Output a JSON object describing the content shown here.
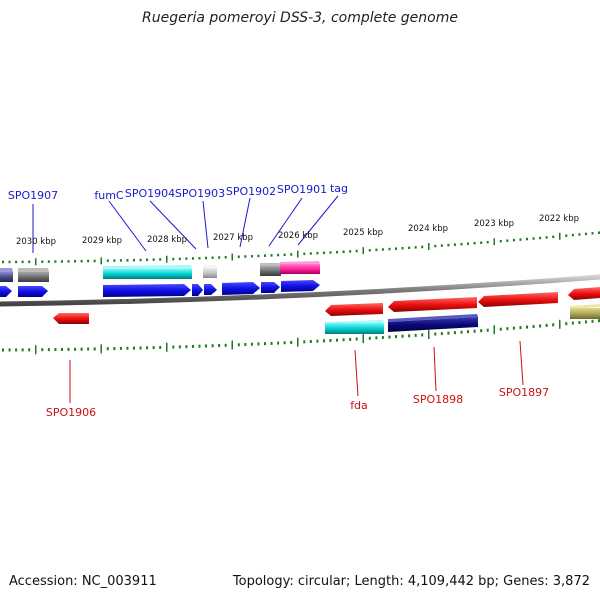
{
  "title": "Ruegeria pomeroyi DSS-3, complete genome",
  "footer": {
    "accession": "Accession: NC_003911",
    "summary": "Topology: circular; Length: 4,109,442 bp; Genes: 3,872"
  },
  "colors": {
    "forward_label": "#1a1acc",
    "reverse_label": "#cc1111",
    "tick": "#1f7a1f",
    "backbone": "#808080"
  },
  "scale": {
    "unit": "kbp",
    "ticks_upper": [
      "2030 kbp",
      "2029 kbp",
      "2028 kbp",
      "2027 kbp",
      "2026 kbp",
      "2025 kbp",
      "2024 kbp",
      "2023 kbp",
      "2022 kbp"
    ]
  },
  "gene_labels": {
    "forward": [
      "SPO1907",
      "fumC",
      "SPO1904",
      "SPO1903",
      "SPO1902",
      "SPO1901",
      "tag"
    ],
    "reverse": [
      "SPO1906",
      "fda",
      "SPO1898",
      "SPO1897"
    ]
  },
  "features": [
    {
      "name": "blue-cds",
      "color": "#1010e6"
    },
    {
      "name": "red-cds",
      "color": "#ee1111"
    },
    {
      "name": "cyan-ec",
      "color": "#00d0d0"
    },
    {
      "name": "grey-ec",
      "color": "#6e6e6e"
    },
    {
      "name": "navy-ec",
      "color": "#0a0a78"
    },
    {
      "name": "pink-ec",
      "color": "#ff2299"
    },
    {
      "name": "olive-ec",
      "color": "#b0a85a"
    }
  ]
}
